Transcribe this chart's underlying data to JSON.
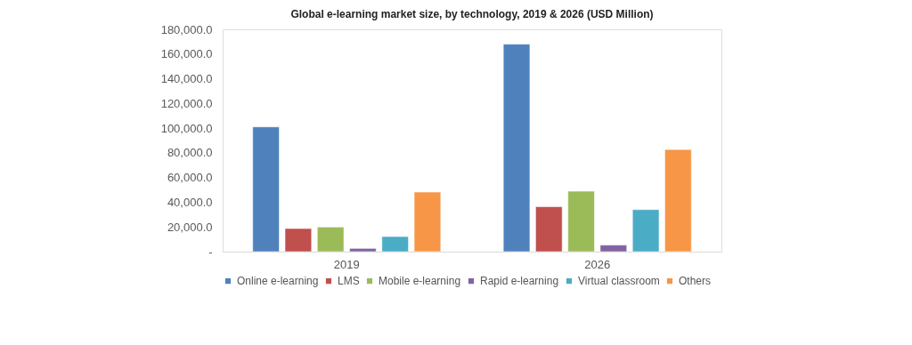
{
  "chart_data": {
    "type": "bar",
    "title": "Global  e-learning market size, by technology,  2019 & 2026 (USD  Million)",
    "categories": [
      "2019",
      "2026"
    ],
    "series": [
      {
        "name": "Online e-learning",
        "color": "#4f81bd",
        "values": [
          101000,
          168000
        ]
      },
      {
        "name": "LMS",
        "color": "#c0504d",
        "values": [
          18700,
          36400
        ]
      },
      {
        "name": "Mobile e-learning",
        "color": "#9bbb59",
        "values": [
          19900,
          48900
        ]
      },
      {
        "name": "Rapid e-learning",
        "color": "#8064a2",
        "values": [
          2600,
          5300
        ]
      },
      {
        "name": "Virtual classroom",
        "color": "#4bacc6",
        "values": [
          12200,
          34000
        ]
      },
      {
        "name": "Others",
        "color": "#f79646",
        "values": [
          48200,
          82700
        ]
      }
    ],
    "ylim": [
      0,
      180000
    ],
    "yticks": [
      {
        "value": 0,
        "label": "-"
      },
      {
        "value": 20000,
        "label": "20,000.0"
      },
      {
        "value": 40000,
        "label": "40,000.0"
      },
      {
        "value": 60000,
        "label": "60,000.0"
      },
      {
        "value": 80000,
        "label": "80,000.0"
      },
      {
        "value": 100000,
        "label": "100,000.0"
      },
      {
        "value": 120000,
        "label": "120,000.0"
      },
      {
        "value": 140000,
        "label": "140,000.0"
      },
      {
        "value": 160000,
        "label": "160,000.0"
      },
      {
        "value": 180000,
        "label": "180,000.0"
      }
    ],
    "grid": false,
    "legend": "bottom"
  }
}
